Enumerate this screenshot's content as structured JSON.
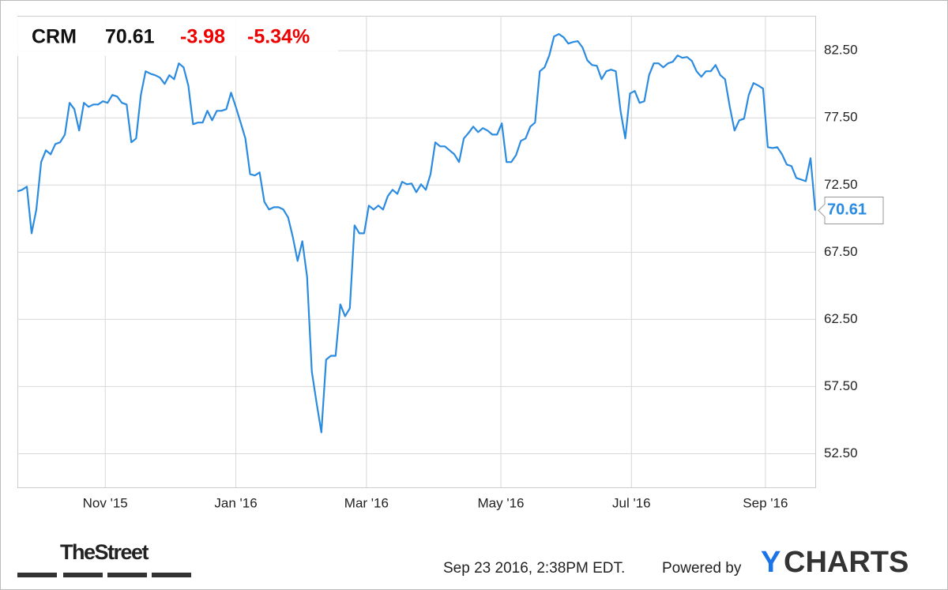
{
  "header": {
    "ticker": "CRM",
    "price": "70.61",
    "change": "-3.98",
    "change_pct": "-5.34%"
  },
  "footer": {
    "timestamp": "Sep 23 2016, 2:38PM EDT.",
    "powered": "Powered by",
    "brand_y": "Y",
    "brand_rest": "CHARTS",
    "source": "TheStreet"
  },
  "chart_data": {
    "type": "line",
    "color": "#2a8be0",
    "grid": true,
    "values": [
      72.03,
      72.15,
      72.38,
      68.91,
      70.68,
      74.21,
      75.09,
      74.79,
      75.56,
      75.68,
      76.26,
      78.62,
      78.15,
      76.56,
      78.62,
      78.32,
      78.5,
      78.5,
      78.74,
      78.62,
      79.21,
      79.09,
      78.62,
      78.5,
      75.68,
      75.97,
      79.21,
      80.97,
      80.79,
      80.68,
      80.5,
      80.03,
      80.68,
      80.38,
      81.56,
      81.26,
      79.91,
      77.03,
      77.15,
      77.15,
      78.03,
      77.32,
      78.03,
      78.03,
      78.15,
      79.38,
      78.32,
      77.15,
      75.97,
      73.32,
      73.21,
      73.44,
      71.26,
      70.68,
      70.85,
      70.85,
      70.68,
      70.09,
      68.62,
      66.85,
      68.32,
      65.68,
      58.62,
      56.26,
      54.09,
      59.5,
      59.79,
      59.79,
      63.62,
      62.74,
      63.32,
      69.5,
      68.91,
      68.91,
      70.97,
      70.68,
      70.97,
      70.68,
      71.68,
      72.15,
      71.85,
      72.74,
      72.56,
      72.62,
      71.97,
      72.56,
      72.15,
      73.32,
      75.68,
      75.38,
      75.38,
      75.09,
      74.79,
      74.21,
      75.97,
      76.38,
      76.85,
      76.44,
      76.74,
      76.56,
      76.26,
      76.26,
      77.09,
      74.21,
      74.21,
      74.74,
      75.79,
      75.97,
      76.85,
      77.15,
      80.97,
      81.26,
      82.15,
      83.56,
      83.74,
      83.5,
      83.03,
      83.15,
      83.21,
      82.74,
      81.79,
      81.44,
      81.38,
      80.38,
      80.97,
      81.09,
      80.97,
      78.03,
      75.97,
      79.32,
      79.5,
      78.62,
      78.74,
      80.68,
      81.56,
      81.56,
      81.26,
      81.56,
      81.68,
      82.15,
      81.97,
      82.03,
      81.74,
      80.97,
      80.56,
      80.97,
      80.97,
      81.44,
      80.68,
      80.38,
      78.32,
      76.56,
      77.32,
      77.44,
      79.21,
      80.09,
      79.91,
      79.68,
      75.32,
      75.26,
      75.32,
      74.79,
      74.03,
      73.91,
      73.03,
      72.91,
      72.79,
      74.5,
      70.61
    ],
    "xlim": [
      0,
      168
    ],
    "xticks": [
      {
        "value": 18.5,
        "label": "Nov '15"
      },
      {
        "value": 46,
        "label": "Jan '16"
      },
      {
        "value": 73.5,
        "label": "Mar '16"
      },
      {
        "value": 101.8,
        "label": "May '16"
      },
      {
        "value": 129.3,
        "label": "Jul '16"
      },
      {
        "value": 157.5,
        "label": "Sep '16"
      }
    ],
    "ylim": [
      50,
      85.1
    ],
    "yticks": [
      {
        "value": 52.5,
        "label": "52.50"
      },
      {
        "value": 57.5,
        "label": "57.50"
      },
      {
        "value": 62.5,
        "label": "62.50"
      },
      {
        "value": 67.5,
        "label": "67.50"
      },
      {
        "value": 72.5,
        "label": "72.50"
      },
      {
        "value": 77.5,
        "label": "77.50"
      },
      {
        "value": 82.5,
        "label": "82.50"
      }
    ]
  }
}
